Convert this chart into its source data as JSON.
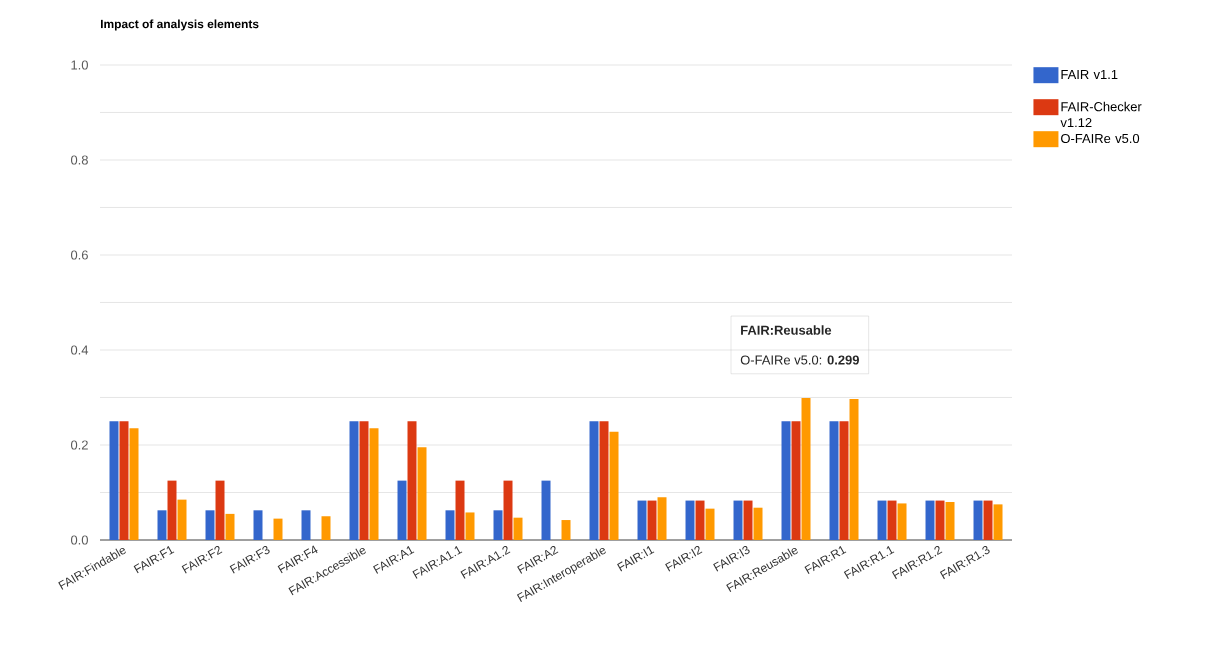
{
  "chart_data": {
    "type": "bar",
    "title": "Impact of analysis elements",
    "categories": [
      "FAIR:Findable",
      "FAIR:F1",
      "FAIR:F2",
      "FAIR:F3",
      "FAIR:F4",
      "FAIR:Accessible",
      "FAIR:A1",
      "FAIR:A1.1",
      "FAIR:A1.2",
      "FAIR:A2",
      "FAIR:Interoperable",
      "FAIR:I1",
      "FAIR:I2",
      "FAIR:I3",
      "FAIR:Reusable",
      "FAIR:R1",
      "FAIR:R1.1",
      "FAIR:R1.2",
      "FAIR:R1.3"
    ],
    "series": [
      {
        "name": "FAIR v1.1",
        "color": "#3366cc",
        "values": [
          0.25,
          0.0625,
          0.0625,
          0.0625,
          0.0625,
          0.25,
          0.125,
          0.0625,
          0.0625,
          0.125,
          0.25,
          0.083,
          0.083,
          0.083,
          0.25,
          0.25,
          0.083,
          0.083,
          0.083
        ]
      },
      {
        "name": "FAIR-Checker v1.12",
        "color": "#dc3912",
        "values": [
          0.25,
          0.125,
          0.125,
          0,
          0,
          0.25,
          0.25,
          0.125,
          0.125,
          0,
          0.25,
          0.083,
          0.083,
          0.083,
          0.25,
          0.25,
          0.083,
          0.083,
          0.083
        ]
      },
      {
        "name": "O-FAIRe v5.0",
        "color": "#ff9900",
        "values": [
          0.235,
          0.085,
          0.055,
          0.045,
          0.05,
          0.235,
          0.195,
          0.058,
          0.047,
          0.042,
          0.228,
          0.09,
          0.066,
          0.068,
          0.299,
          0.297,
          0.077,
          0.08,
          0.075
        ]
      }
    ],
    "ylim": [
      0,
      1
    ],
    "yticks": [
      {
        "value": 0,
        "label": "0.0"
      },
      {
        "value": 0.1,
        "label": null
      },
      {
        "value": 0.2,
        "label": "0.2"
      },
      {
        "value": 0.3,
        "label": null
      },
      {
        "value": 0.4,
        "label": "0.4"
      },
      {
        "value": 0.5,
        "label": null
      },
      {
        "value": 0.6,
        "label": "0.6"
      },
      {
        "value": 0.7,
        "label": null
      },
      {
        "value": 0.8,
        "label": "0.8"
      },
      {
        "value": 0.9,
        "label": null
      },
      {
        "value": 1,
        "label": "1.0"
      }
    ],
    "grid": "y",
    "legend": "top right",
    "annotations": [
      "FAIR:Reusable",
      "O-FAIRe v5.0: **0.299**"
    ]
  }
}
